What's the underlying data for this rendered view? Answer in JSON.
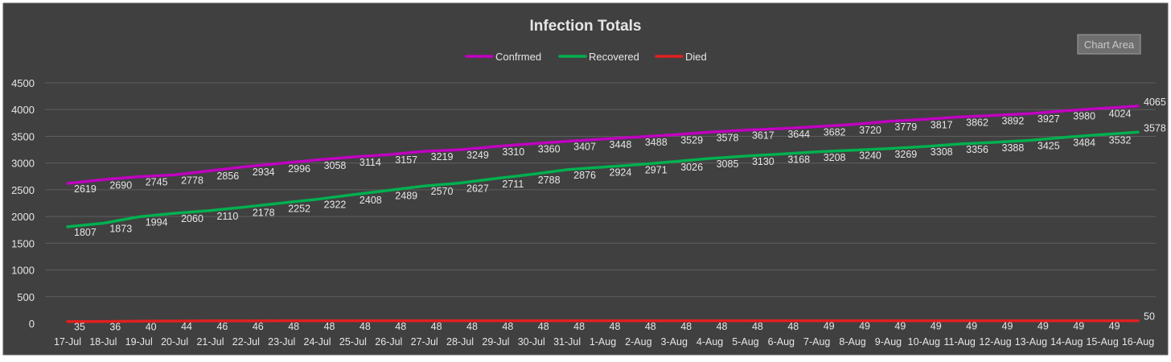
{
  "chart_data": {
    "type": "line",
    "title": "Infection Totals",
    "chart_area_tooltip": "Chart Area",
    "categories": [
      "17-Jul",
      "18-Jul",
      "19-Jul",
      "20-Jul",
      "21-Jul",
      "22-Jul",
      "23-Jul",
      "24-Jul",
      "25-Jul",
      "26-Jul",
      "27-Jul",
      "28-Jul",
      "29-Jul",
      "30-Jul",
      "31-Jul",
      "1-Aug",
      "2-Aug",
      "3-Aug",
      "4-Aug",
      "5-Aug",
      "6-Aug",
      "7-Aug",
      "8-Aug",
      "9-Aug",
      "10-Aug",
      "11-Aug",
      "12-Aug",
      "13-Aug",
      "14-Aug",
      "15-Aug",
      "16-Aug"
    ],
    "y_ticks": [
      0,
      500,
      1000,
      1500,
      2000,
      2500,
      3000,
      3500,
      4000,
      4500
    ],
    "ylim": [
      0,
      4500
    ],
    "grid": true,
    "legend_position": "top",
    "series": [
      {
        "name": "Confrmed",
        "color": "#c000c0",
        "values": [
          2619,
          2690,
          2745,
          2778,
          2856,
          2934,
          2996,
          3058,
          3114,
          3157,
          3219,
          3249,
          3310,
          3360,
          3407,
          3448,
          3488,
          3529,
          3578,
          3617,
          3644,
          3682,
          3720,
          3779,
          3817,
          3862,
          3892,
          3927,
          3980,
          4024,
          4065
        ]
      },
      {
        "name": "Recovered",
        "color": "#00b050",
        "values": [
          1807,
          1873,
          1994,
          2060,
          2110,
          2178,
          2252,
          2322,
          2408,
          2489,
          2570,
          2627,
          2711,
          2788,
          2876,
          2924,
          2971,
          3026,
          3085,
          3130,
          3168,
          3208,
          3240,
          3269,
          3308,
          3356,
          3388,
          3425,
          3484,
          3532,
          3578
        ]
      },
      {
        "name": "Died",
        "color": "#e02020",
        "values": [
          35,
          36,
          40,
          44,
          46,
          46,
          48,
          48,
          48,
          48,
          48,
          48,
          48,
          48,
          48,
          48,
          48,
          48,
          48,
          48,
          48,
          49,
          49,
          49,
          49,
          49,
          49,
          49,
          49,
          49,
          50
        ]
      }
    ],
    "colors": {
      "background": "#404040",
      "gridline": "#5e5e5e",
      "text": "#e6e6e6",
      "tooltip_bg": "#6f6f6f",
      "tooltip_border": "#a0a0a0"
    }
  }
}
